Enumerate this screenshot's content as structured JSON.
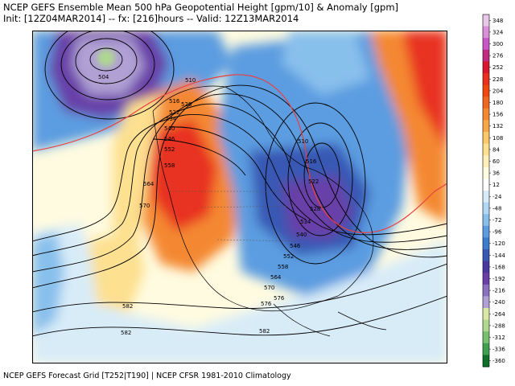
{
  "header": {
    "title": "NCEP GEFS Ensemble Mean 500 hPa Geopotential Height [gpm/10] & Anomaly [gpm]",
    "subtitle": "Init: [12Z04MAR2014] -- fx: [216]hours -- Valid: 12Z13MAR2014"
  },
  "footer": {
    "text": "NCEP GEFS Forecast Grid [T252|T190] | NCEP CFSR 1981-2010 Climatology"
  },
  "legend": {
    "ticks": [
      "348",
      "324",
      "300",
      "276",
      "252",
      "228",
      "204",
      "180",
      "156",
      "132",
      "108",
      "84",
      "60",
      "36",
      "12",
      "-24",
      "-48",
      "-72",
      "-96",
      "-120",
      "-144",
      "-168",
      "-192",
      "-216",
      "-240",
      "-264",
      "-288",
      "-312",
      "-336",
      "-360"
    ],
    "colors": [
      "#e8c8e8",
      "#d890d8",
      "#c858c8",
      "#c02c80",
      "#d81830",
      "#e83020",
      "#f04810",
      "#f06820",
      "#f48830",
      "#f8a848",
      "#fcc868",
      "#fde090",
      "#fef0b8",
      "#fffbe0",
      "#ffffff",
      "#d8ecf8",
      "#b0d8f4",
      "#88c0ec",
      "#5c9ce0",
      "#3c7ccc",
      "#3858b4",
      "#4838a0",
      "#6840a8",
      "#8c70c0",
      "#b0a0d4",
      "#dce8a8",
      "#b0d890",
      "#78c070",
      "#40a050",
      "#107028"
    ]
  },
  "map": {
    "contour_labels": [
      "510",
      "516",
      "522",
      "528",
      "534",
      "540",
      "546",
      "552",
      "558",
      "564",
      "570",
      "576",
      "582",
      "504",
      "510",
      "516",
      "522",
      "528",
      "534",
      "540",
      "546",
      "552",
      "558",
      "564",
      "570",
      "576",
      "582",
      "582"
    ]
  }
}
